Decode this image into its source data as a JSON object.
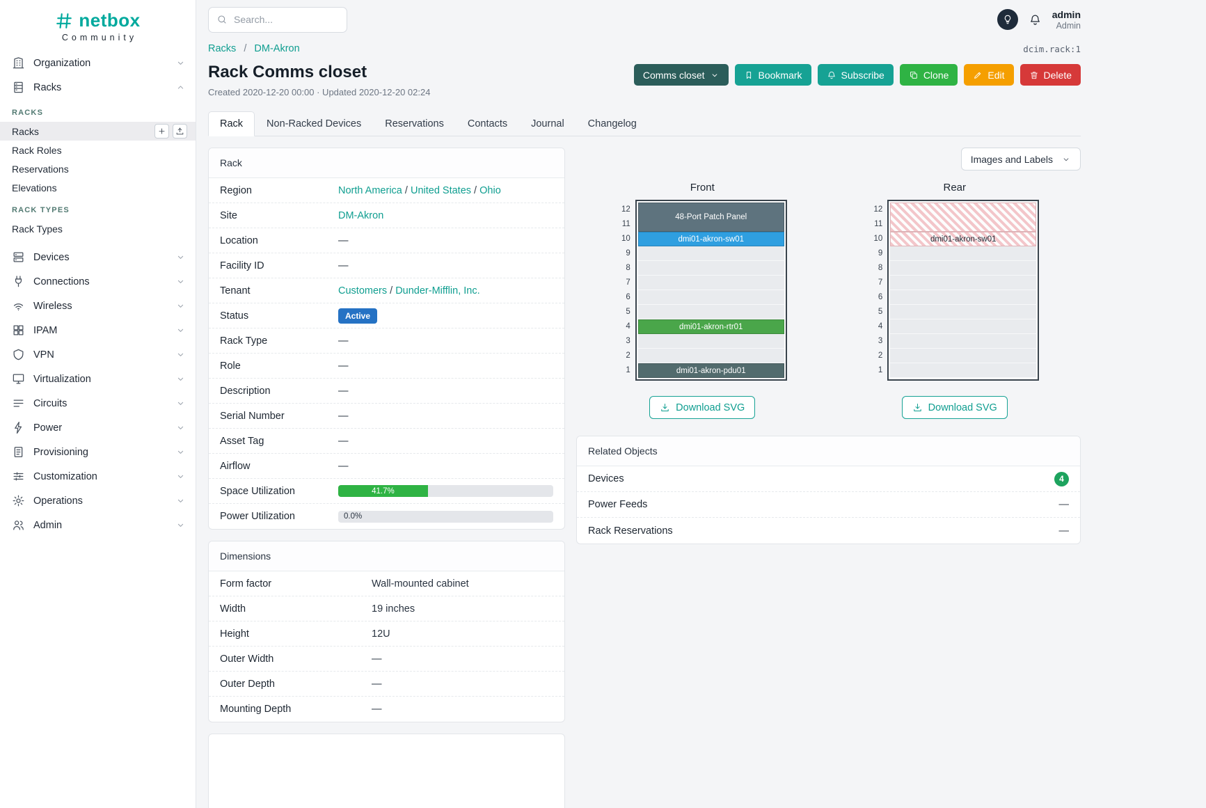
{
  "topbar": {
    "search_placeholder": "Search...",
    "user_name": "admin",
    "user_role": "Admin"
  },
  "sidebar": {
    "brand": "netbox",
    "brand_sub": "Community",
    "sections": [
      {
        "label": "Organization",
        "icon": "building"
      },
      {
        "label": "Racks",
        "icon": "rack",
        "expanded": true,
        "subsections": [
          {
            "header": "RACKS",
            "items": [
              {
                "label": "Racks",
                "active": true,
                "actions": [
                  "add",
                  "import"
                ]
              },
              {
                "label": "Rack Roles"
              },
              {
                "label": "Reservations"
              },
              {
                "label": "Elevations"
              }
            ]
          },
          {
            "header": "RACK TYPES",
            "items": [
              {
                "label": "Rack Types"
              }
            ]
          }
        ]
      },
      {
        "label": "Devices",
        "icon": "devices"
      },
      {
        "label": "Connections",
        "icon": "connections"
      },
      {
        "label": "Wireless",
        "icon": "wireless"
      },
      {
        "label": "IPAM",
        "icon": "ipam"
      },
      {
        "label": "VPN",
        "icon": "vpn"
      },
      {
        "label": "Virtualization",
        "icon": "virtualization"
      },
      {
        "label": "Circuits",
        "icon": "circuits"
      },
      {
        "label": "Power",
        "icon": "power"
      },
      {
        "label": "Provisioning",
        "icon": "provisioning"
      },
      {
        "label": "Customization",
        "icon": "customization"
      },
      {
        "label": "Operations",
        "icon": "operations"
      },
      {
        "label": "Admin",
        "icon": "admin"
      }
    ]
  },
  "breadcrumb": {
    "items": [
      "Racks",
      "DM-Akron"
    ],
    "object_id": "dcim.rack:1"
  },
  "page": {
    "title": "Rack Comms closet",
    "meta": "Created 2020-12-20 00:00 · Updated 2020-12-20 02:24"
  },
  "actions": {
    "rack_selector": "Comms closet",
    "bookmark": "Bookmark",
    "subscribe": "Subscribe",
    "clone": "Clone",
    "edit": "Edit",
    "delete": "Delete"
  },
  "tabs": [
    {
      "label": "Rack",
      "active": true
    },
    {
      "label": "Non-Racked Devices"
    },
    {
      "label": "Reservations"
    },
    {
      "label": "Contacts"
    },
    {
      "label": "Journal"
    },
    {
      "label": "Changelog"
    }
  ],
  "rack_card": {
    "title": "Rack",
    "rows": [
      {
        "label": "Region",
        "links": [
          "North America",
          "United States",
          "Ohio"
        ]
      },
      {
        "label": "Site",
        "links": [
          "DM-Akron"
        ]
      },
      {
        "label": "Location",
        "value": "—"
      },
      {
        "label": "Facility ID",
        "value": "—"
      },
      {
        "label": "Tenant",
        "links": [
          "Customers",
          "Dunder-Mifflin, Inc."
        ]
      },
      {
        "label": "Status",
        "badge": "Active"
      },
      {
        "label": "Rack Type",
        "value": "—"
      },
      {
        "label": "Role",
        "value": "—"
      },
      {
        "label": "Description",
        "value": "—"
      },
      {
        "label": "Serial Number",
        "value": "—"
      },
      {
        "label": "Asset Tag",
        "value": "—"
      },
      {
        "label": "Airflow",
        "value": "—"
      },
      {
        "label": "Space Utilization",
        "progress": 41.7,
        "progress_label": "41.7%"
      },
      {
        "label": "Power Utilization",
        "progress": 0.0,
        "progress_label": "0.0%"
      }
    ]
  },
  "dimensions_card": {
    "title": "Dimensions",
    "rows": [
      {
        "label": "Form factor",
        "value": "Wall-mounted cabinet"
      },
      {
        "label": "Width",
        "value": "19 inches"
      },
      {
        "label": "Height",
        "value": "12U"
      },
      {
        "label": "Outer Width",
        "value": "—"
      },
      {
        "label": "Outer Depth",
        "value": "—"
      },
      {
        "label": "Mounting Depth",
        "value": "—"
      }
    ]
  },
  "elevations": {
    "toggle_label": "Images and Labels",
    "download_label": "Download SVG",
    "units": [
      12,
      11,
      10,
      9,
      8,
      7,
      6,
      5,
      4,
      3,
      2,
      1
    ],
    "front": {
      "title": "Front",
      "devices": [
        {
          "name": "48-Port Patch Panel",
          "top_unit": 12,
          "u_height": 2,
          "color": "#5e737e",
          "text": "#ffffff"
        },
        {
          "name": "dmi01-akron-sw01",
          "top_unit": 10,
          "u_height": 1,
          "color": "#2f9fe0",
          "text": "#ffffff"
        },
        {
          "name": "dmi01-akron-rtr01",
          "top_unit": 4,
          "u_height": 1,
          "color": "#4aa64a",
          "text": "#ffffff"
        },
        {
          "name": "dmi01-akron-pdu01",
          "top_unit": 1,
          "u_height": 1,
          "color": "#526b6d",
          "text": "#ffffff"
        }
      ]
    },
    "rear": {
      "title": "Rear",
      "devices": [
        {
          "name": "",
          "top_unit": 12,
          "u_height": 2,
          "striped": true
        },
        {
          "name": "dmi01-akron-sw01",
          "top_unit": 10,
          "u_height": 1,
          "striped": true,
          "text": "#222b36"
        }
      ]
    }
  },
  "related_objects": {
    "title": "Related Objects",
    "rows": [
      {
        "label": "Devices",
        "badge": "4"
      },
      {
        "label": "Power Feeds",
        "value": "—"
      },
      {
        "label": "Rack Reservations",
        "value": "—"
      }
    ]
  },
  "colors": {
    "brand_teal": "#00a99d",
    "link_teal": "#0f9e90",
    "button_teal": "#16a294",
    "button_dark_teal": "#2b5d5a",
    "button_green": "#2fb344",
    "button_yellow": "#f59f00",
    "button_red": "#d63939",
    "status_blue": "#2572c4",
    "progress_green": "#2fb344",
    "count_badge_green": "#1da35e"
  }
}
